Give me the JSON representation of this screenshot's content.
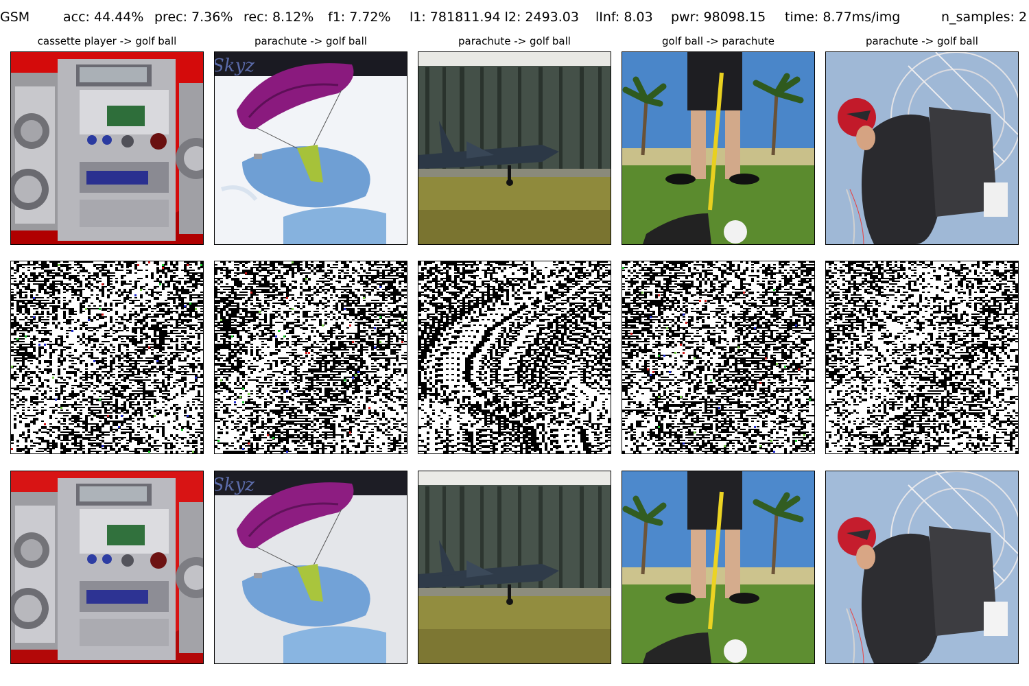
{
  "header": {
    "method": "GSM",
    "acc": "acc: 44.44%",
    "prec": "prec: 7.36%",
    "rec": "rec: 8.12%",
    "f1": "f1: 7.72%",
    "l1_l2": "l1: 781811.94 l2: 2493.03",
    "linf": "lInf: 8.03",
    "pwr": "pwr: 98098.15",
    "time": "time: 8.77ms/img",
    "n_samples": "n_samples: 2"
  },
  "columns": [
    {
      "title": "cassette player -> golf ball",
      "subject": "cassette-player-stereo"
    },
    {
      "title": "parachute -> golf ball",
      "subject": "parachute-in-sky",
      "watermark": "Skyz"
    },
    {
      "title": "parachute -> golf ball",
      "subject": "fighter-jet-on-runway"
    },
    {
      "title": "golf ball -> parachute",
      "subject": "golfer-teeing-off"
    },
    {
      "title": "parachute -> golf ball",
      "subject": "paramotor-pilot"
    }
  ],
  "rows": [
    "original-image",
    "perturbation-map",
    "adversarial-image"
  ]
}
